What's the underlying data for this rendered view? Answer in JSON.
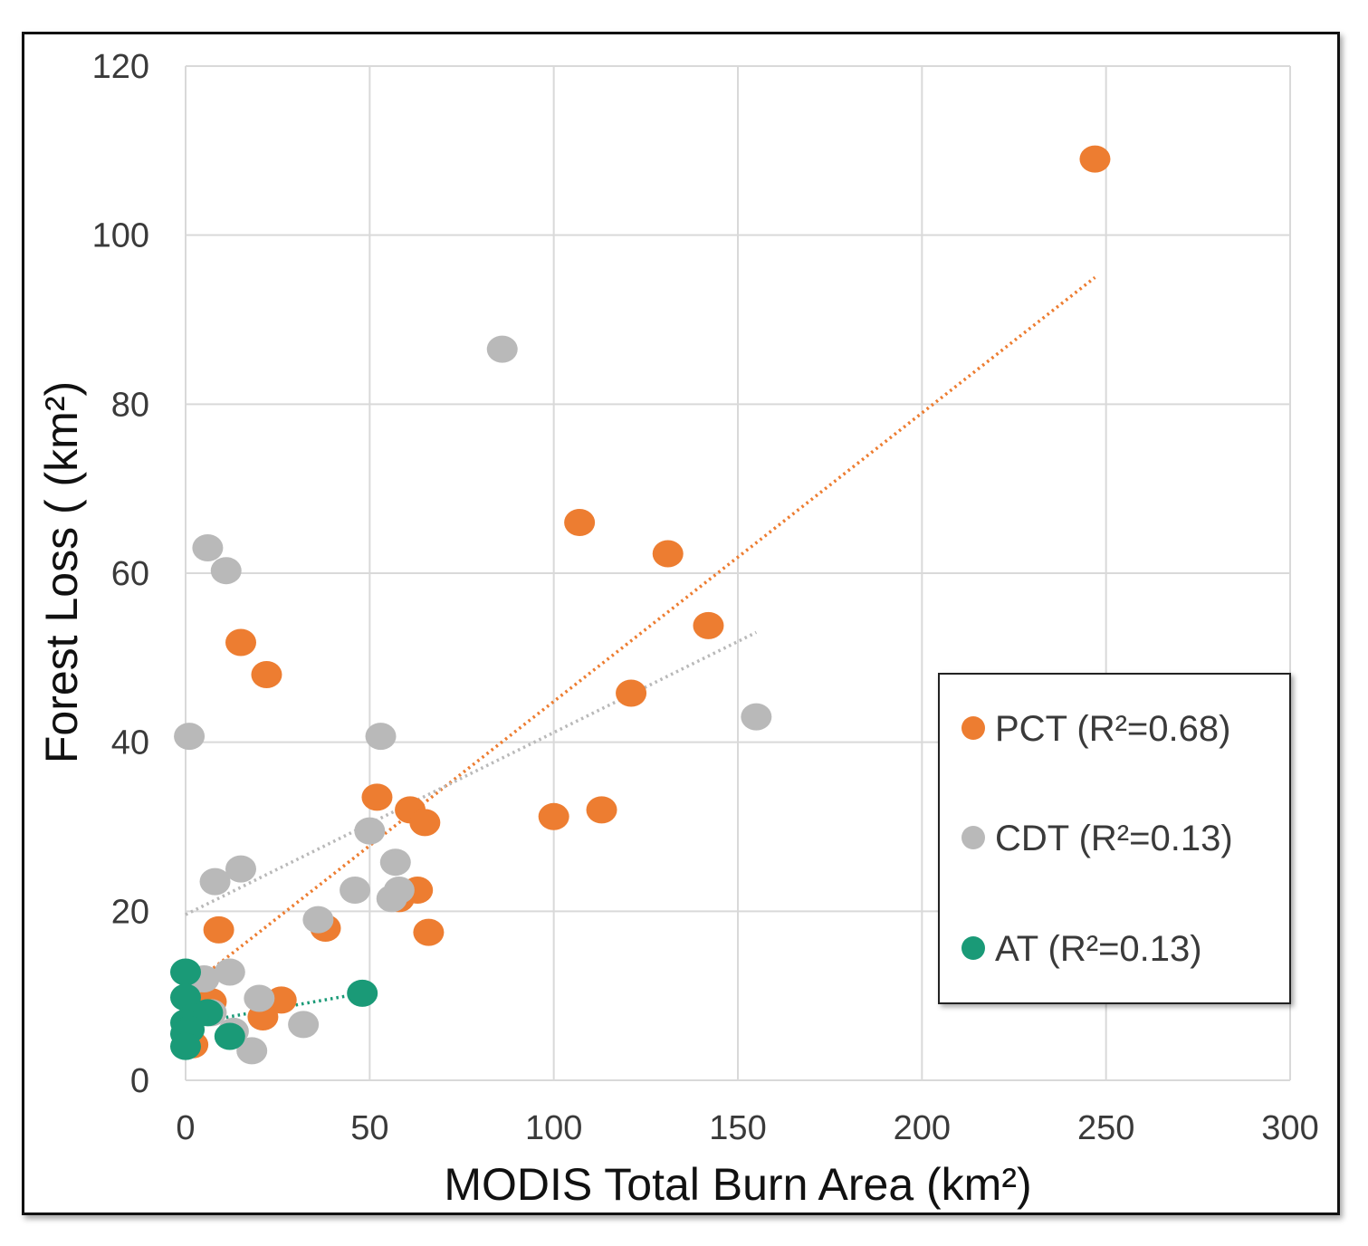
{
  "chart_data": {
    "type": "scatter",
    "title": "",
    "xlabel": "MODIS Total Burn Area (km²)",
    "ylabel": "Forest Loss ( (km²)",
    "xlim": [
      0,
      300
    ],
    "ylim": [
      0,
      120
    ],
    "xticks": [
      "0",
      "50",
      "100",
      "150",
      "200",
      "250",
      "300"
    ],
    "yticks": [
      "0",
      "20",
      "40",
      "60",
      "80",
      "100",
      "120"
    ],
    "grid": true,
    "legend_position": "right",
    "series": [
      {
        "name": "PCT (R²=0.68)",
        "color": "#ED7D31",
        "points": [
          [
            247,
            109
          ],
          [
            107,
            66
          ],
          [
            131,
            62.3
          ],
          [
            142,
            53.8
          ],
          [
            121,
            45.8
          ],
          [
            15,
            51.8
          ],
          [
            22,
            48
          ],
          [
            52,
            33.5
          ],
          [
            61,
            32
          ],
          [
            65,
            30.5
          ],
          [
            100,
            31.2
          ],
          [
            113,
            32
          ],
          [
            63,
            22.5
          ],
          [
            58,
            21.5
          ],
          [
            38,
            18
          ],
          [
            66,
            17.5
          ],
          [
            9,
            17.8
          ],
          [
            26,
            9.5
          ],
          [
            21,
            7.5
          ],
          [
            7,
            9.3
          ],
          [
            2,
            4.2
          ]
        ],
        "trendline": [
          [
            0,
            10.7
          ],
          [
            247,
            95
          ]
        ]
      },
      {
        "name": "CDT (R²=0.13)",
        "color": "#B9B9B9",
        "points": [
          [
            86,
            86.5
          ],
          [
            6,
            63
          ],
          [
            11,
            60.3
          ],
          [
            1,
            40.7
          ],
          [
            53,
            40.7
          ],
          [
            155,
            43
          ],
          [
            50,
            29.5
          ],
          [
            57,
            25.8
          ],
          [
            15,
            25
          ],
          [
            8,
            23.5
          ],
          [
            46,
            22.5
          ],
          [
            58,
            22.5
          ],
          [
            56,
            21.5
          ],
          [
            36,
            19
          ],
          [
            12,
            12.8
          ],
          [
            5,
            12
          ],
          [
            7,
            8
          ],
          [
            20,
            9.7
          ],
          [
            13,
            5.8
          ],
          [
            32,
            6.6
          ],
          [
            18,
            3.5
          ]
        ],
        "trendline": [
          [
            0,
            19.6
          ],
          [
            155,
            53
          ]
        ]
      },
      {
        "name": "AT (R²=0.13)",
        "color": "#1A9A77",
        "points": [
          [
            0,
            12.8
          ],
          [
            0,
            9.8
          ],
          [
            6,
            8
          ],
          [
            2,
            7.5
          ],
          [
            0,
            6.8
          ],
          [
            1,
            6
          ],
          [
            0,
            5.5
          ],
          [
            12,
            5.2
          ],
          [
            0,
            4
          ],
          [
            48,
            10.3
          ]
        ],
        "trendline": [
          [
            0,
            6.6
          ],
          [
            48,
            10.3
          ]
        ]
      }
    ]
  }
}
